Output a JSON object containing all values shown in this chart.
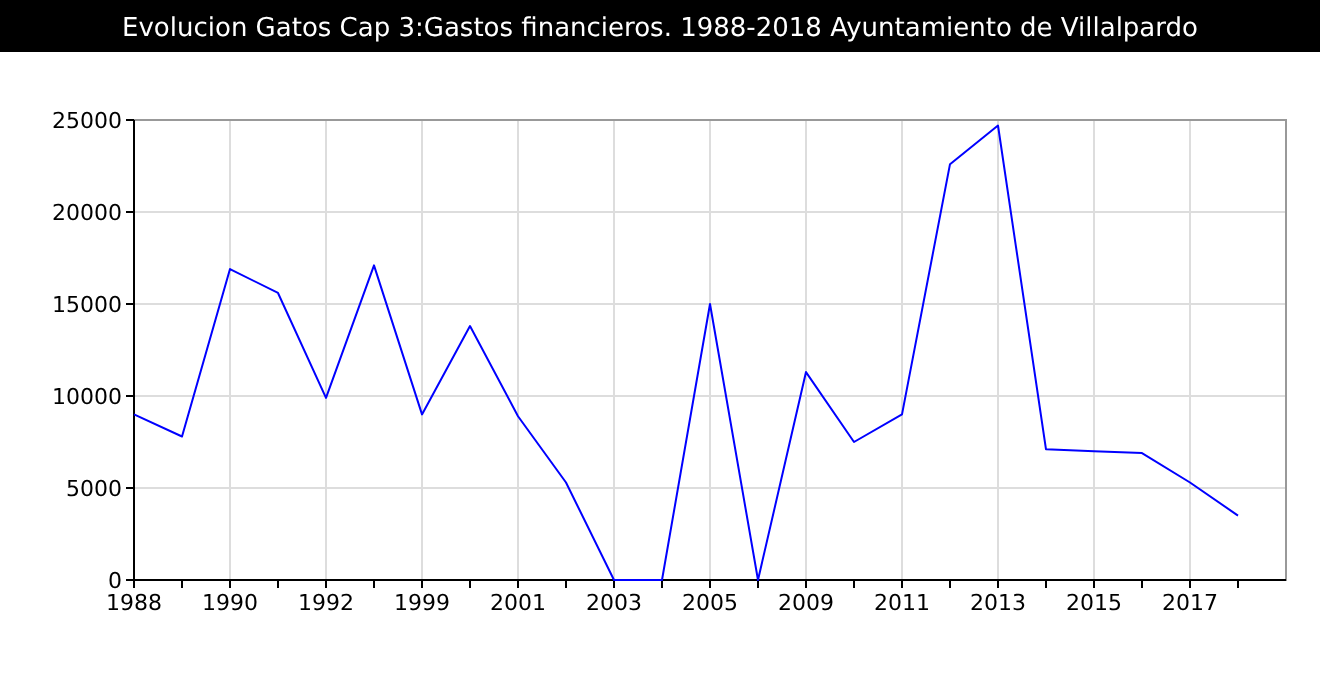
{
  "chart_data": {
    "type": "line",
    "title": "Evolucion Gatos Cap 3:Gastos financieros. 1988-2018 Ayuntamiento de Villalpardo",
    "categories": [
      "1988",
      null,
      "1990",
      null,
      "1992",
      null,
      "1999",
      null,
      "2001",
      null,
      "2003",
      null,
      "2005",
      null,
      "2009",
      null,
      "2011",
      null,
      "2013",
      null,
      "2015",
      null,
      "2017",
      null
    ],
    "series": [
      {
        "color": "#0000ff",
        "values": [
          9000,
          7800,
          16900,
          15600,
          9900,
          17100,
          9000,
          13800,
          8900,
          5300,
          0,
          0,
          15000,
          0,
          11300,
          7500,
          9000,
          22600,
          24700,
          7100,
          7000,
          6900,
          5300,
          3500
        ]
      }
    ],
    "ylim": [
      0,
      25000
    ],
    "yticks": [
      0,
      5000,
      10000,
      15000,
      20000,
      25000
    ],
    "grid": true,
    "marker": "none",
    "line_style": "solid"
  }
}
